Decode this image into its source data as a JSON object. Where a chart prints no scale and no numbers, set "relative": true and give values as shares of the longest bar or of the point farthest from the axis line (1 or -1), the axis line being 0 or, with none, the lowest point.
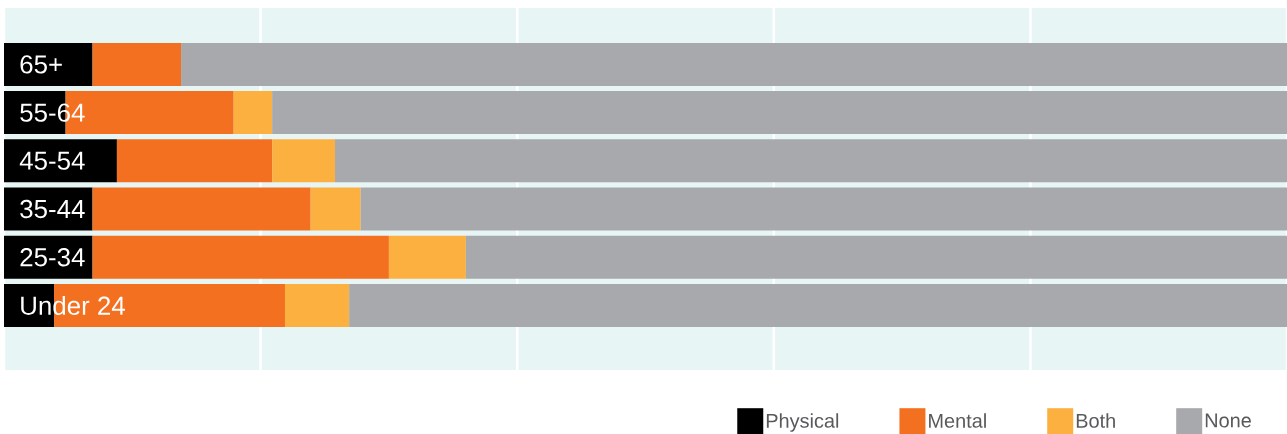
{
  "chart_data": {
    "type": "bar",
    "orientation": "horizontal",
    "stacked": true,
    "relative": true,
    "categories": [
      "65+",
      "55-64",
      "45-54",
      "35-44",
      "25-34",
      "Under 24"
    ],
    "series": [
      {
        "name": "Physical",
        "color": "#000000",
        "values": [
          0.069,
          0.048,
          0.088,
          0.069,
          0.069,
          0.039
        ]
      },
      {
        "name": "Mental",
        "color": "#f37021",
        "values": [
          0.069,
          0.131,
          0.121,
          0.17,
          0.231,
          0.18
        ]
      },
      {
        "name": "Both",
        "color": "#fbb040",
        "values": [
          0,
          0.03,
          0.049,
          0.039,
          0.06,
          0.05
        ]
      },
      {
        "name": "None",
        "color": "#a7a9ac",
        "values": [
          0.862,
          0.791,
          0.742,
          0.722,
          0.64,
          0.731
        ]
      }
    ],
    "grid": "x",
    "legend": "bottom right"
  }
}
